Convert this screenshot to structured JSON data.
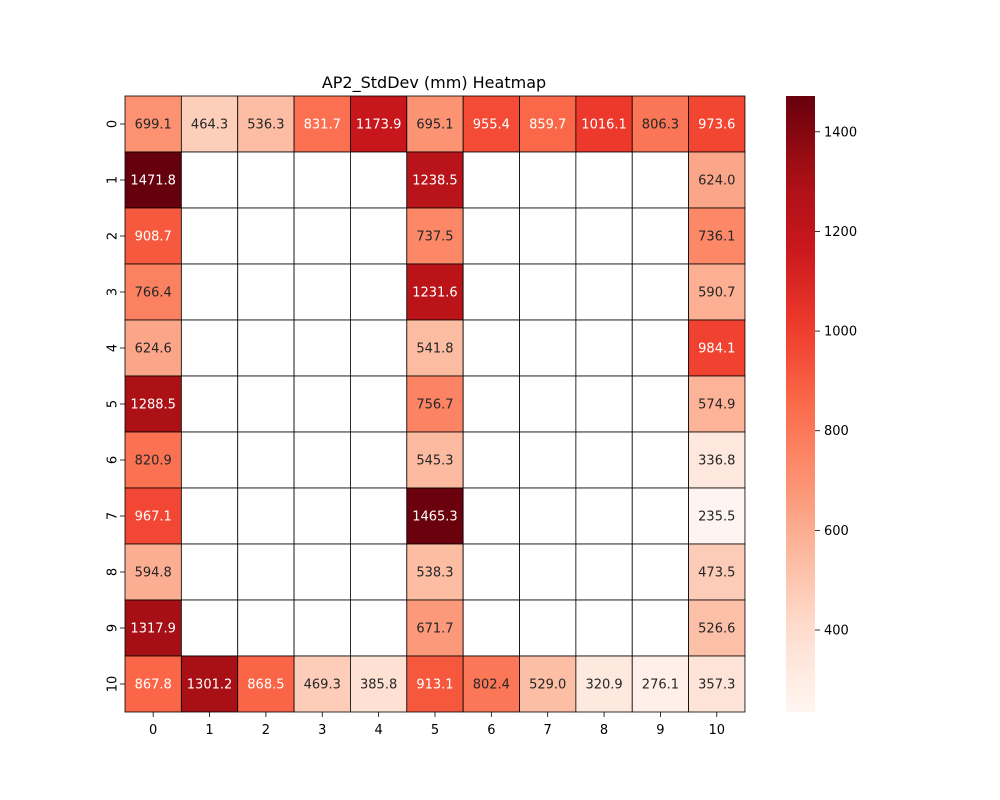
{
  "chart_data": {
    "type": "heatmap",
    "title": "AP2_StdDev (mm) Heatmap",
    "xlabel": "",
    "ylabel": "",
    "x_categories": [
      "0",
      "1",
      "2",
      "3",
      "4",
      "5",
      "6",
      "7",
      "8",
      "9",
      "10"
    ],
    "y_categories": [
      "0",
      "1",
      "2",
      "3",
      "4",
      "5",
      "6",
      "7",
      "8",
      "9",
      "10"
    ],
    "values": [
      [
        699.1,
        464.3,
        536.3,
        831.7,
        1173.9,
        695.1,
        955.4,
        859.7,
        1016.1,
        806.3,
        973.6
      ],
      [
        1471.8,
        null,
        null,
        null,
        null,
        1238.5,
        null,
        null,
        null,
        null,
        624.0
      ],
      [
        908.7,
        null,
        null,
        null,
        null,
        737.5,
        null,
        null,
        null,
        null,
        736.1
      ],
      [
        766.4,
        null,
        null,
        null,
        null,
        1231.6,
        null,
        null,
        null,
        null,
        590.7
      ],
      [
        624.6,
        null,
        null,
        null,
        null,
        541.8,
        null,
        null,
        null,
        null,
        984.1
      ],
      [
        1288.5,
        null,
        null,
        null,
        null,
        756.7,
        null,
        null,
        null,
        null,
        574.9
      ],
      [
        820.9,
        null,
        null,
        null,
        null,
        545.3,
        null,
        null,
        null,
        null,
        336.8
      ],
      [
        967.1,
        null,
        null,
        null,
        null,
        1465.3,
        null,
        null,
        null,
        null,
        235.5
      ],
      [
        594.8,
        null,
        null,
        null,
        null,
        538.3,
        null,
        null,
        null,
        null,
        473.5
      ],
      [
        1317.9,
        null,
        null,
        null,
        null,
        671.7,
        null,
        null,
        null,
        null,
        526.6
      ],
      [
        867.8,
        1301.2,
        868.5,
        469.3,
        385.8,
        913.1,
        802.4,
        529.0,
        320.9,
        276.1,
        357.3
      ]
    ],
    "colormap": "Reds",
    "colorbar": {
      "range": [
        235.5,
        1471.8
      ],
      "ticks": [
        400,
        600,
        800,
        1000,
        1200,
        1400
      ]
    },
    "grid": true
  }
}
